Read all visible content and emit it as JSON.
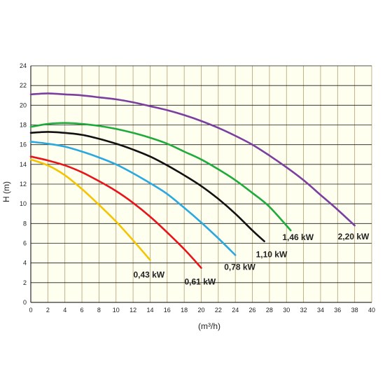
{
  "chart_data": {
    "type": "line",
    "title": "",
    "xlabel": "(m³/h)",
    "ylabel": "H (m)",
    "xlim": [
      0,
      40
    ],
    "ylim": [
      0,
      24
    ],
    "x_ticks": [
      "0",
      "2",
      "4",
      "6",
      "8",
      "10",
      "12",
      "14",
      "16",
      "18",
      "20",
      "22",
      "24",
      "26",
      "28",
      "30",
      "32",
      "34",
      "36",
      "38",
      "40"
    ],
    "y_ticks": [
      "0",
      "2",
      "4",
      "6",
      "8",
      "10",
      "12",
      "14",
      "16",
      "18",
      "20",
      "22",
      "24"
    ],
    "grid": true,
    "plot_background": "#fffff0",
    "grid_color": "#b0a070",
    "series": [
      {
        "name": "0,43 kW",
        "color": "#f5c400",
        "x": [
          0,
          2,
          4,
          6,
          8,
          10,
          12,
          14
        ],
        "y": [
          14.5,
          13.9,
          12.9,
          11.5,
          9.9,
          8.2,
          6.3,
          4.3
        ]
      },
      {
        "name": "0,61 kW",
        "color": "#e8141b",
        "x": [
          0,
          2,
          4,
          6,
          8,
          10,
          12,
          14,
          16,
          18,
          20
        ],
        "y": [
          14.8,
          14.4,
          13.9,
          13.2,
          12.3,
          11.3,
          10.1,
          8.7,
          7.1,
          5.4,
          3.5
        ]
      },
      {
        "name": "0,78 kW",
        "color": "#2aa8e0",
        "x": [
          0,
          2,
          4,
          6,
          8,
          10,
          12,
          14,
          16,
          18,
          20,
          22,
          24
        ],
        "y": [
          16.3,
          16.1,
          15.8,
          15.3,
          14.7,
          14.0,
          13.1,
          12.1,
          11.0,
          9.6,
          8.1,
          6.5,
          4.8
        ]
      },
      {
        "name": "1,10 kW",
        "color": "#111111",
        "x": [
          0,
          2,
          4,
          6,
          8,
          10,
          12,
          14,
          16,
          18,
          20,
          22,
          24,
          26,
          27.4
        ],
        "y": [
          17.2,
          17.3,
          17.2,
          17.0,
          16.6,
          16.1,
          15.5,
          14.8,
          13.9,
          12.9,
          11.8,
          10.5,
          9.0,
          7.3,
          6.2
        ]
      },
      {
        "name": "1,46 kW",
        "color": "#1faa3c",
        "x": [
          0,
          2,
          4,
          6,
          8,
          10,
          12,
          14,
          16,
          18,
          20,
          22,
          24,
          26,
          28,
          30.5
        ],
        "y": [
          17.8,
          18.1,
          18.2,
          18.1,
          17.9,
          17.6,
          17.2,
          16.7,
          16.1,
          15.3,
          14.5,
          13.5,
          12.4,
          11.1,
          9.7,
          7.3
        ]
      },
      {
        "name": "2,20 kW",
        "color": "#7b3fa0",
        "x": [
          0,
          2,
          4,
          6,
          8,
          10,
          12,
          14,
          16,
          18,
          20,
          22,
          24,
          26,
          28,
          30,
          32,
          34,
          36,
          38
        ],
        "y": [
          21.1,
          21.2,
          21.1,
          21.0,
          20.8,
          20.6,
          20.3,
          19.9,
          19.5,
          19.0,
          18.4,
          17.7,
          16.9,
          16.0,
          14.9,
          13.7,
          12.4,
          10.9,
          9.4,
          7.8
        ]
      }
    ]
  }
}
